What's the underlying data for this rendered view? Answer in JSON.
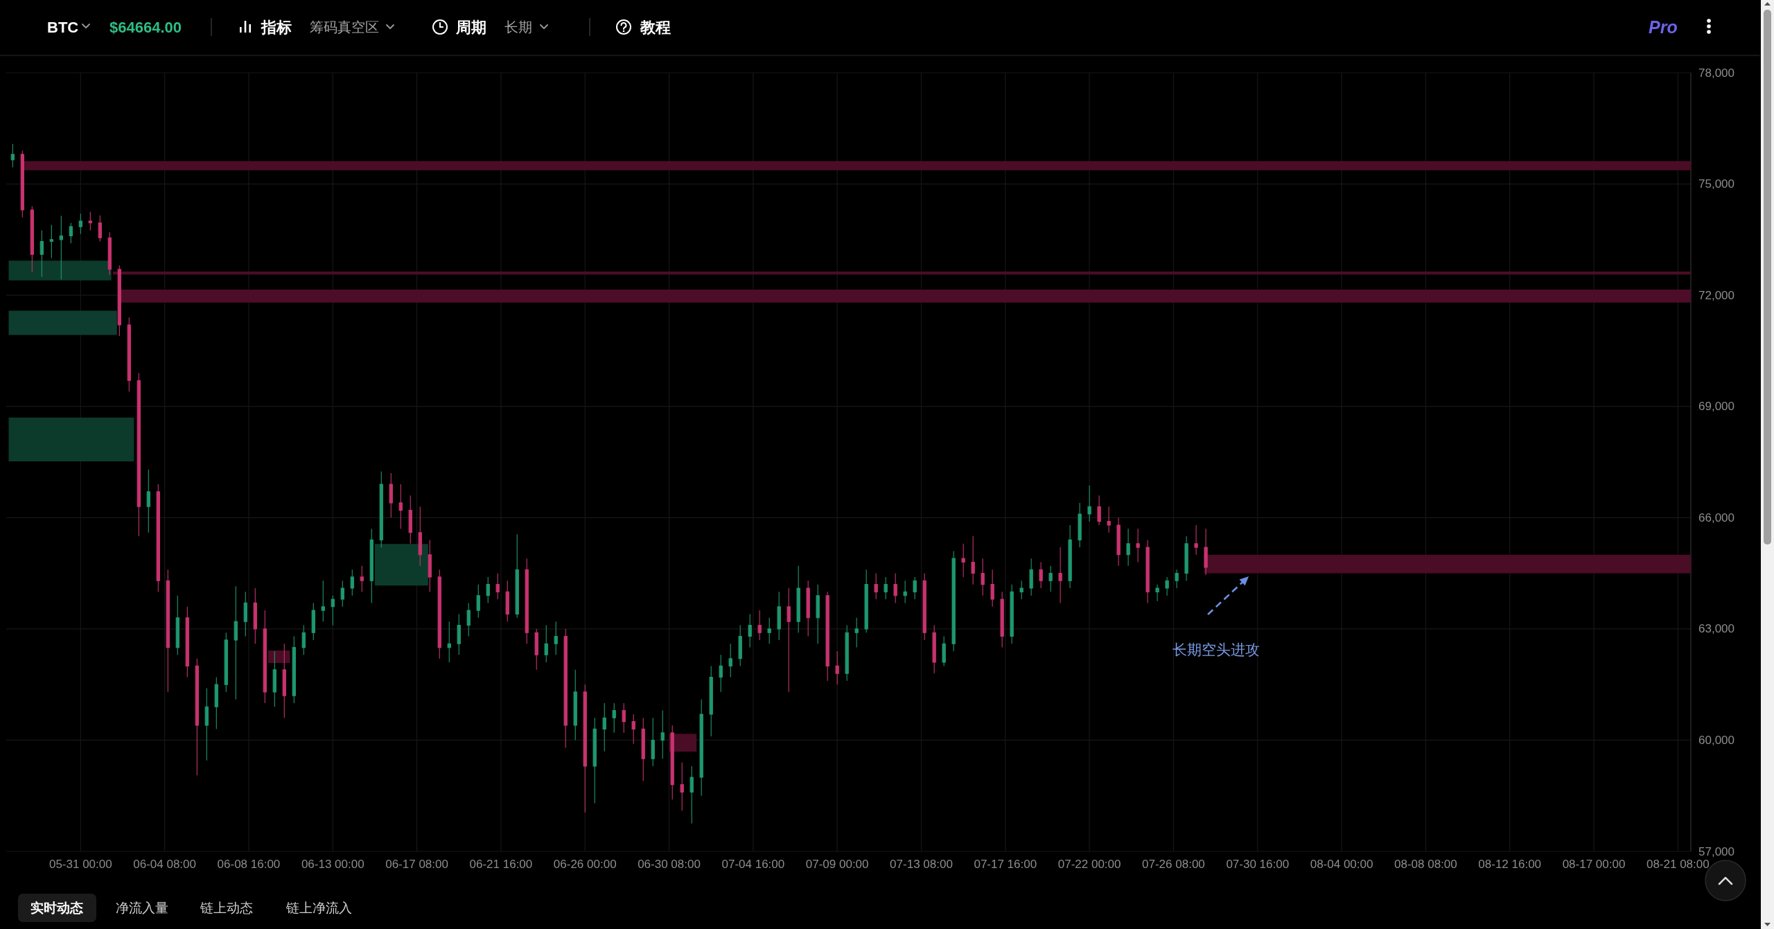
{
  "chart_data": {
    "type": "candlestick",
    "title": "BTC",
    "subtitle": "$64664.00",
    "xlim": [
      "--05-27T04:00",
      "--08-22T00:00"
    ],
    "ylim": [
      57000,
      78000
    ],
    "xticks": [
      {
        "value": "--05-31T00:00",
        "label": "05-31 00:00"
      },
      {
        "value": "--06-04T08:00",
        "label": "06-04 08:00"
      },
      {
        "value": "--06-08T16:00",
        "label": "06-08 16:00"
      },
      {
        "value": "--06-13T00:00",
        "label": "06-13 00:00"
      },
      {
        "value": "--06-17T08:00",
        "label": "06-17 08:00"
      },
      {
        "value": "--06-21T16:00",
        "label": "06-21 16:00"
      },
      {
        "value": "--06-26T00:00",
        "label": "06-26 00:00"
      },
      {
        "value": "--06-30T08:00",
        "label": "06-30 08:00"
      },
      {
        "value": "--07-04T16:00",
        "label": "07-04 16:00"
      },
      {
        "value": "--07-09T00:00",
        "label": "07-09 00:00"
      },
      {
        "value": "--07-13T08:00",
        "label": "07-13 08:00"
      },
      {
        "value": "--07-17T16:00",
        "label": "07-17 16:00"
      },
      {
        "value": "--07-22T00:00",
        "label": "07-22 00:00"
      },
      {
        "value": "--07-26T08:00",
        "label": "07-26 08:00"
      },
      {
        "value": "--07-30T16:00",
        "label": "07-30 16:00"
      },
      {
        "value": "--08-04T00:00",
        "label": "08-04 00:00"
      },
      {
        "value": "--08-08T08:00",
        "label": "08-08 08:00"
      },
      {
        "value": "--08-12T16:00",
        "label": "08-12 16:00"
      },
      {
        "value": "--08-17T00:00",
        "label": "08-17 00:00"
      },
      {
        "value": "--08-21T08:00",
        "label": "08-21 08:00"
      }
    ],
    "yticks": [
      {
        "value": 57000,
        "label": "57,000"
      },
      {
        "value": 60000,
        "label": "60,000"
      },
      {
        "value": 63000,
        "label": "63,000"
      },
      {
        "value": 66000,
        "label": "66,000"
      },
      {
        "value": 69000,
        "label": "69,000"
      },
      {
        "value": 72000,
        "label": "72,000"
      },
      {
        "value": 75000,
        "label": "75,000"
      },
      {
        "value": 78000,
        "label": "78,000"
      }
    ],
    "grid": true,
    "series": [
      {
        "type": "line",
        "x": [
          "--05-28T00:00",
          "--08-22T00:00"
        ],
        "values": [
          null,
          null
        ],
        "lower": [
          75370,
          75370
        ],
        "upper": [
          75620,
          75620
        ],
        "color": "#4b0c26"
      },
      {
        "type": "line",
        "x": [
          "--05-27T07:00",
          "--06-01T14:00"
        ],
        "values": [
          null,
          null
        ],
        "lower": [
          72400,
          72400
        ],
        "upper": [
          72930,
          72930
        ],
        "color": "#0c3b2c"
      },
      {
        "type": "line",
        "x": [
          "--06-01T16:00",
          "--08-22T00:00"
        ],
        "values": [
          null,
          null
        ],
        "lower": [
          72560,
          72560
        ],
        "upper": [
          72640,
          72640
        ],
        "color": "#4b0c26"
      },
      {
        "type": "line",
        "x": [
          "--05-27T07:00",
          "--06-01T21:00"
        ],
        "values": [
          null,
          null
        ],
        "lower": [
          70930,
          70930
        ],
        "upper": [
          71580,
          71580
        ],
        "color": "#0d3d2e"
      },
      {
        "type": "line",
        "x": [
          "--06-01T22:00",
          "--08-22T00:00"
        ],
        "values": [
          null,
          null
        ],
        "lower": [
          71800,
          71800
        ],
        "upper": [
          72150,
          72150
        ],
        "color": "#4d0d28"
      },
      {
        "type": "line",
        "x": [
          "--05-27T07:00",
          "--06-02T18:00"
        ],
        "values": [
          null,
          null
        ],
        "lower": [
          67520,
          67520
        ],
        "upper": [
          68700,
          68700
        ],
        "color": "#0c3b2c"
      },
      {
        "type": "line",
        "x": [
          "--06-09T16:00",
          "--06-10T19:00"
        ],
        "values": [
          null,
          null
        ],
        "lower": [
          62080,
          62080
        ],
        "upper": [
          62420,
          62420
        ],
        "color": "#4b0c26"
      },
      {
        "type": "line",
        "x": [
          "--06-15T04:00",
          "--06-17T22:00"
        ],
        "values": [
          null,
          null
        ],
        "lower": [
          64170,
          64170
        ],
        "upper": [
          65290,
          65290
        ],
        "color": "#0c3b2c"
      },
      {
        "type": "line",
        "x": [
          "--06-30T08:00",
          "--07-01T18:00"
        ],
        "values": [
          null,
          null
        ],
        "lower": [
          59690,
          59690
        ],
        "upper": [
          60170,
          60170
        ],
        "color": "#4b0c26"
      },
      {
        "type": "line",
        "x": [
          "--07-27T22:00",
          "--08-22T00:00"
        ],
        "values": [
          null,
          null
        ],
        "lower": [
          64500,
          64500
        ],
        "upper": [
          65000,
          65000
        ],
        "color": "#4b0c26"
      },
      {
        "x": [
          "--05-27T12:00",
          "--05-28T00:00",
          "--05-28T12:00",
          "--05-29T00:00",
          "--05-29T12:00",
          "--05-30T00:00",
          "--05-30T12:00",
          "--05-31T00:00",
          "--05-31T12:00",
          "--06-01T00:00",
          "--06-01T12:00",
          "--06-02T00:00",
          "--06-02T12:00",
          "--06-03T00:00",
          "--06-03T12:00",
          "--06-04T00:00",
          "--06-04T12:00",
          "--06-05T00:00",
          "--06-05T12:00",
          "--06-06T00:00",
          "--06-06T12:00",
          "--06-07T00:00",
          "--06-07T12:00",
          "--06-08T00:00",
          "--06-08T12:00",
          "--06-09T00:00",
          "--06-09T12:00",
          "--06-10T00:00",
          "--06-10T12:00",
          "--06-11T00:00",
          "--06-11T12:00",
          "--06-12T00:00",
          "--06-12T12:00",
          "--06-13T00:00",
          "--06-13T12:00",
          "--06-14T00:00",
          "--06-14T12:00",
          "--06-15T00:00",
          "--06-15T12:00",
          "--06-16T00:00",
          "--06-16T12:00",
          "--06-17T00:00",
          "--06-17T12:00",
          "--06-18T00:00",
          "--06-18T12:00",
          "--06-19T00:00",
          "--06-19T12:00",
          "--06-20T00:00",
          "--06-20T12:00",
          "--06-21T00:00",
          "--06-21T12:00",
          "--06-22T00:00",
          "--06-22T12:00",
          "--06-23T00:00",
          "--06-23T12:00",
          "--06-24T00:00",
          "--06-24T12:00",
          "--06-25T00:00",
          "--06-25T12:00",
          "--06-26T00:00",
          "--06-26T12:00",
          "--06-27T00:00",
          "--06-27T12:00",
          "--06-28T00:00",
          "--06-28T12:00",
          "--06-29T00:00",
          "--06-29T12:00",
          "--06-30T00:00",
          "--06-30T12:00",
          "--07-01T00:00",
          "--07-01T12:00",
          "--07-02T00:00",
          "--07-02T12:00",
          "--07-03T00:00",
          "--07-03T12:00",
          "--07-04T00:00",
          "--07-04T12:00",
          "--07-05T00:00",
          "--07-05T12:00",
          "--07-06T00:00",
          "--07-06T12:00",
          "--07-07T00:00",
          "--07-07T12:00",
          "--07-08T00:00",
          "--07-08T12:00",
          "--07-09T00:00",
          "--07-09T12:00",
          "--07-10T00:00",
          "--07-10T12:00",
          "--07-11T00:00",
          "--07-11T12:00",
          "--07-12T00:00",
          "--07-12T12:00",
          "--07-13T00:00",
          "--07-13T12:00",
          "--07-14T00:00",
          "--07-14T12:00",
          "--07-15T00:00",
          "--07-15T12:00",
          "--07-16T00:00",
          "--07-16T12:00",
          "--07-17T00:00",
          "--07-17T12:00",
          "--07-18T00:00",
          "--07-18T12:00",
          "--07-19T00:00",
          "--07-19T12:00",
          "--07-20T00:00",
          "--07-20T12:00",
          "--07-21T00:00",
          "--07-21T12:00",
          "--07-22T00:00",
          "--07-22T12:00",
          "--07-23T00:00",
          "--07-23T12:00",
          "--07-24T00:00",
          "--07-24T12:00",
          "--07-25T00:00",
          "--07-25T12:00",
          "--07-26T00:00",
          "--07-26T12:00",
          "--07-27T00:00",
          "--07-27T12:00",
          "--07-28T00:00"
        ],
        "ohlc": [
          [
            75650,
            76080,
            75450,
            75800
          ],
          [
            75800,
            75900,
            74100,
            74300
          ],
          [
            74300,
            74400,
            72630,
            73100
          ],
          [
            73100,
            73750,
            72500,
            73450
          ],
          [
            73450,
            73900,
            73000,
            73500
          ],
          [
            73500,
            74140,
            72430,
            73600
          ],
          [
            73600,
            73950,
            73400,
            73850
          ],
          [
            73850,
            74200,
            73650,
            74000
          ],
          [
            74000,
            74250,
            73750,
            73950
          ],
          [
            73950,
            74150,
            73450,
            73550
          ],
          [
            73550,
            73700,
            72550,
            72700
          ],
          [
            72700,
            72800,
            70900,
            71200
          ],
          [
            71200,
            71400,
            69400,
            69700
          ],
          [
            69700,
            69900,
            65500,
            66300
          ],
          [
            66300,
            67300,
            65600,
            66700
          ],
          [
            66700,
            66900,
            64000,
            64300
          ],
          [
            64300,
            64600,
            61300,
            62500
          ],
          [
            62500,
            63900,
            62300,
            63300
          ],
          [
            63300,
            63600,
            61700,
            62000
          ],
          [
            62000,
            62200,
            59050,
            60400
          ],
          [
            60400,
            61400,
            59450,
            60900
          ],
          [
            60900,
            61700,
            60300,
            61500
          ],
          [
            61500,
            62900,
            61300,
            62700
          ],
          [
            62700,
            64150,
            61100,
            63200
          ],
          [
            63200,
            64000,
            62800,
            63700
          ],
          [
            63700,
            64100,
            62600,
            63000
          ],
          [
            63000,
            63500,
            61000,
            61300
          ],
          [
            61300,
            62400,
            60900,
            61900
          ],
          [
            61900,
            62600,
            60600,
            61200
          ],
          [
            61200,
            62800,
            61000,
            62500
          ],
          [
            62500,
            63100,
            62300,
            62900
          ],
          [
            62900,
            63700,
            62700,
            63500
          ],
          [
            63500,
            64300,
            63200,
            63600
          ],
          [
            63600,
            63900,
            63100,
            63800
          ],
          [
            63800,
            64300,
            63600,
            64100
          ],
          [
            64100,
            64600,
            63900,
            64400
          ],
          [
            64400,
            64700,
            64000,
            64300
          ],
          [
            64300,
            65700,
            63700,
            65400
          ],
          [
            65400,
            67250,
            65200,
            66900
          ],
          [
            66900,
            67200,
            66000,
            66400
          ],
          [
            66400,
            66900,
            65700,
            66200
          ],
          [
            66200,
            66600,
            65300,
            65600
          ],
          [
            65600,
            66300,
            64700,
            65000
          ],
          [
            65000,
            65400,
            64000,
            64400
          ],
          [
            64400,
            64600,
            62200,
            62500
          ],
          [
            62500,
            63200,
            62100,
            62600
          ],
          [
            62600,
            63400,
            62300,
            63100
          ],
          [
            63100,
            63700,
            62800,
            63500
          ],
          [
            63500,
            64200,
            63300,
            63900
          ],
          [
            63900,
            64400,
            63700,
            64200
          ],
          [
            64200,
            64500,
            63800,
            64000
          ],
          [
            64000,
            64300,
            63200,
            63400
          ],
          [
            63400,
            65550,
            63300,
            64600
          ],
          [
            64600,
            64900,
            62600,
            62900
          ],
          [
            62900,
            63000,
            61900,
            62300
          ],
          [
            62300,
            63100,
            62100,
            62600
          ],
          [
            62600,
            63200,
            62300,
            62800
          ],
          [
            62800,
            63000,
            59800,
            60400
          ],
          [
            60400,
            61900,
            60000,
            61300
          ],
          [
            61300,
            61500,
            58050,
            59300
          ],
          [
            59300,
            60600,
            58300,
            60300
          ],
          [
            60300,
            61000,
            59700,
            60600
          ],
          [
            60600,
            61000,
            60200,
            60800
          ],
          [
            60800,
            61000,
            60200,
            60500
          ],
          [
            60500,
            60700,
            59900,
            60300
          ],
          [
            60300,
            60600,
            58900,
            59500
          ],
          [
            59500,
            60600,
            59300,
            60000
          ],
          [
            60000,
            60800,
            59500,
            60200
          ],
          [
            60200,
            60400,
            58400,
            58800
          ],
          [
            58800,
            59400,
            58100,
            58600
          ],
          [
            58600,
            59300,
            57750,
            59000
          ],
          [
            59000,
            61100,
            58500,
            60700
          ],
          [
            60700,
            62000,
            60100,
            61700
          ],
          [
            61700,
            62300,
            61300,
            62000
          ],
          [
            62000,
            62600,
            61700,
            62200
          ],
          [
            62200,
            63100,
            62000,
            62800
          ],
          [
            62800,
            63400,
            62500,
            63100
          ],
          [
            63100,
            63500,
            62700,
            62900
          ],
          [
            62900,
            63300,
            62600,
            63000
          ],
          [
            63000,
            64000,
            62700,
            63600
          ],
          [
            63600,
            64100,
            61300,
            63200
          ],
          [
            63200,
            64700,
            62900,
            64100
          ],
          [
            64100,
            64300,
            62800,
            63300
          ],
          [
            63300,
            64200,
            62600,
            63900
          ],
          [
            63900,
            64000,
            61600,
            62000
          ],
          [
            62000,
            62400,
            61500,
            61800
          ],
          [
            61800,
            63100,
            61600,
            62900
          ],
          [
            62900,
            63300,
            62500,
            63000
          ],
          [
            63000,
            64600,
            62900,
            64200
          ],
          [
            64200,
            64500,
            63800,
            64000
          ],
          [
            64000,
            64400,
            63800,
            64200
          ],
          [
            64200,
            64500,
            63700,
            63900
          ],
          [
            63900,
            64300,
            63700,
            64000
          ],
          [
            64000,
            64400,
            63800,
            64300
          ],
          [
            64300,
            64500,
            62700,
            62900
          ],
          [
            62900,
            63100,
            61800,
            62100
          ],
          [
            62100,
            62800,
            62000,
            62600
          ],
          [
            62600,
            65100,
            62400,
            64900
          ],
          [
            64900,
            65300,
            64400,
            64800
          ],
          [
            64800,
            65500,
            64200,
            64500
          ],
          [
            64500,
            64900,
            63900,
            64200
          ],
          [
            64200,
            64600,
            63600,
            63800
          ],
          [
            63800,
            64000,
            62500,
            62800
          ],
          [
            62800,
            64200,
            62600,
            64000
          ],
          [
            64000,
            64300,
            63800,
            64100
          ],
          [
            64100,
            64900,
            63900,
            64600
          ],
          [
            64600,
            64800,
            64100,
            64300
          ],
          [
            64300,
            64700,
            64000,
            64500
          ],
          [
            64500,
            65200,
            63700,
            64300
          ],
          [
            64300,
            65800,
            64100,
            65400
          ],
          [
            65400,
            66400,
            65200,
            66100
          ],
          [
            66100,
            66870,
            65900,
            66300
          ],
          [
            66300,
            66600,
            65800,
            65900
          ],
          [
            65900,
            66300,
            65600,
            65800
          ],
          [
            65800,
            66000,
            64700,
            65000
          ],
          [
            65000,
            65700,
            64700,
            65300
          ],
          [
            65300,
            65700,
            64800,
            65200
          ],
          [
            65200,
            65400,
            63700,
            64000
          ],
          [
            64000,
            64200,
            63750,
            64100
          ],
          [
            64100,
            64400,
            63900,
            64300
          ],
          [
            64300,
            64600,
            64100,
            64500
          ],
          [
            64500,
            65500,
            64300,
            65300
          ],
          [
            65300,
            65800,
            65000,
            65200
          ],
          [
            65200,
            65700,
            64450,
            64660
          ]
        ],
        "colors": [
          "#1e9870",
          "#c8336f",
          "#c8336f",
          "#1e9870",
          "#1e9870",
          "#1e9870",
          "#1e9870",
          "#1e9870",
          "#c8336f",
          "#c8336f",
          "#c8336f",
          "#c8336f",
          "#c8336f",
          "#c8336f",
          "#1e9870",
          "#c8336f",
          "#c8336f",
          "#1e9870",
          "#c8336f",
          "#c8336f",
          "#1e9870",
          "#1e9870",
          "#1e9870",
          "#1e9870",
          "#1e9870",
          "#c8336f",
          "#c8336f",
          "#1e9870",
          "#c8336f",
          "#1e9870",
          "#1e9870",
          "#1e9870",
          "#1e9870",
          "#1e9870",
          "#1e9870",
          "#1e9870",
          "#c8336f",
          "#1e9870",
          "#1e9870",
          "#c8336f",
          "#c8336f",
          "#c8336f",
          "#c8336f",
          "#c8336f",
          "#c8336f",
          "#1e9870",
          "#1e9870",
          "#1e9870",
          "#1e9870",
          "#1e9870",
          "#c8336f",
          "#c8336f",
          "#1e9870",
          "#c8336f",
          "#c8336f",
          "#1e9870",
          "#1e9870",
          "#c8336f",
          "#1e9870",
          "#c8336f",
          "#1e9870",
          "#1e9870",
          "#1e9870",
          "#c8336f",
          "#c8336f",
          "#c8336f",
          "#1e9870",
          "#1e9870",
          "#c8336f",
          "#c8336f",
          "#1e9870",
          "#1e9870",
          "#1e9870",
          "#1e9870",
          "#1e9870",
          "#1e9870",
          "#1e9870",
          "#c8336f",
          "#1e9870",
          "#1e9870",
          "#c8336f",
          "#1e9870",
          "#c8336f",
          "#1e9870",
          "#c8336f",
          "#c8336f",
          "#1e9870",
          "#1e9870",
          "#1e9870",
          "#c8336f",
          "#1e9870",
          "#c8336f",
          "#1e9870",
          "#1e9870",
          "#c8336f",
          "#c8336f",
          "#1e9870",
          "#1e9870",
          "#c8336f",
          "#c8336f",
          "#c8336f",
          "#c8336f",
          "#c8336f",
          "#1e9870",
          "#1e9870",
          "#1e9870",
          "#c8336f",
          "#1e9870",
          "#c8336f",
          "#1e9870",
          "#1e9870",
          "#1e9870",
          "#c8336f",
          "#c8336f",
          "#c8336f",
          "#1e9870",
          "#c8336f",
          "#c8336f",
          "#1e9870",
          "#1e9870",
          "#1e9870",
          "#1e9870",
          "#c8336f",
          "#c8336f"
        ]
      }
    ],
    "annotations": [
      "长期空头进攻",
      "指标",
      "筹码真空区",
      "周期",
      "长期",
      "教程",
      "Pro",
      "实时动态",
      "净流入量",
      "链上动态",
      "链上净流入"
    ]
  }
}
